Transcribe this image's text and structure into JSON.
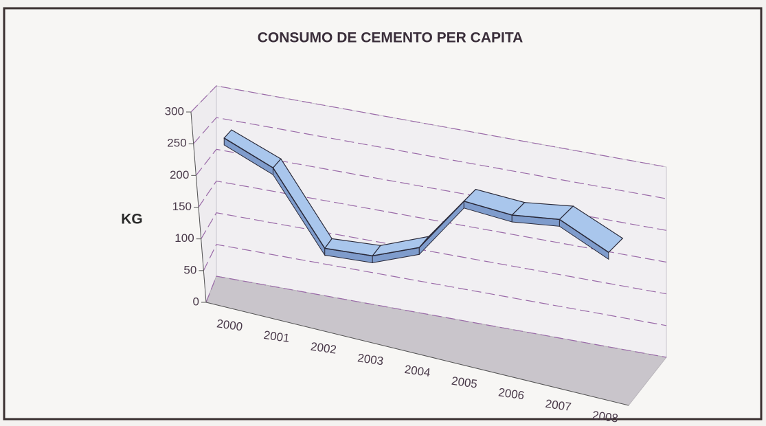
{
  "chart_data": {
    "type": "line3d",
    "title": "CONSUMO DE CEMENTO PER CAPITA",
    "y_label": "KG",
    "categories": [
      "2000",
      "2001",
      "2002",
      "2003",
      "2004",
      "2005",
      "2006",
      "2007",
      "2008"
    ],
    "series": [
      {
        "name": "KG",
        "color": "#a9c6ec",
        "values": [
          255,
          225,
          115,
          120,
          150,
          240,
          235,
          245,
          210
        ]
      }
    ],
    "ylim": [
      0,
      300
    ],
    "yticks": [
      0,
      50,
      100,
      150,
      200,
      250,
      300
    ],
    "grid": true
  }
}
